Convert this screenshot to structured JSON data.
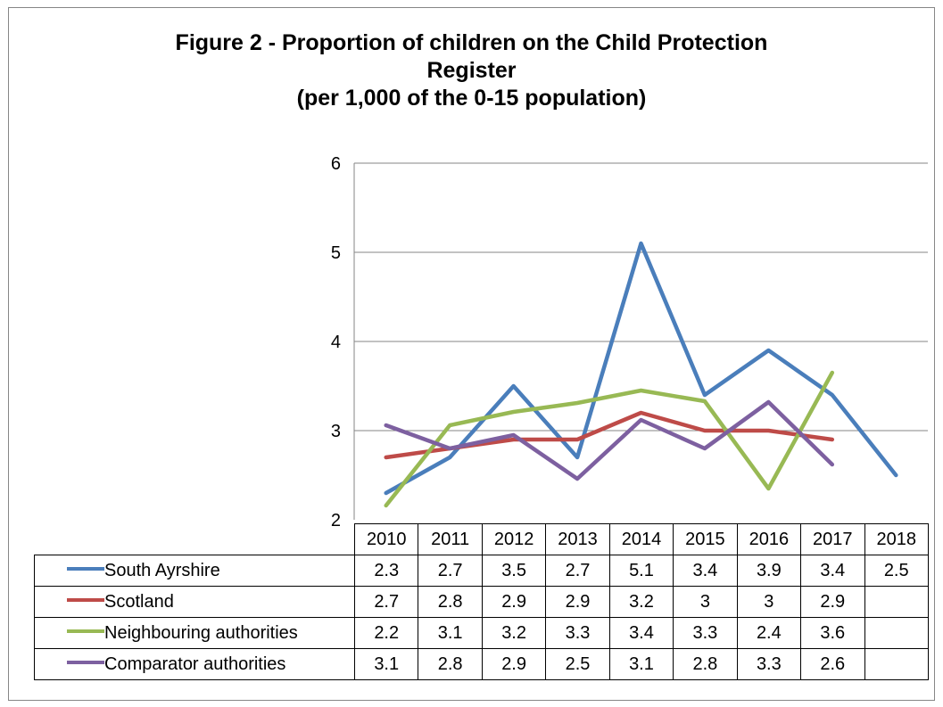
{
  "title_lines": [
    "Figure 2 - Proportion of children on the Child Protection",
    "Register",
    "(per 1,000 of the 0-15 population)"
  ],
  "chart_data": {
    "type": "line",
    "title": "Figure 2 - Proportion of children on the Child Protection Register (per 1,000 of the 0-15 population)",
    "categories": [
      "2010",
      "2011",
      "2012",
      "2013",
      "2014",
      "2015",
      "2016",
      "2017",
      "2018"
    ],
    "ylim": [
      2,
      6
    ],
    "yticks": [
      "2",
      "3",
      "4",
      "5",
      "6"
    ],
    "grid": true,
    "legend": "data-table",
    "series": [
      {
        "name": "South Ayrshire",
        "color": "#4a7ebb",
        "values": [
          2.3,
          2.7,
          3.5,
          2.7,
          5.1,
          3.4,
          3.9,
          3.4,
          2.5
        ],
        "labels": [
          "2.3",
          "2.7",
          "3.5",
          "2.7",
          "5.1",
          "3.4",
          "3.9",
          "3.4",
          "2.5"
        ]
      },
      {
        "name": "Scotland",
        "color": "#be4b48",
        "values": [
          2.7,
          2.8,
          2.9,
          2.9,
          3.2,
          3.0,
          3.0,
          2.9,
          null
        ],
        "labels": [
          "2.7",
          "2.8",
          "2.9",
          "2.9",
          "3.2",
          "3",
          "3",
          "2.9",
          ""
        ]
      },
      {
        "name": "Neighbouring authorities",
        "color": "#98b954",
        "values": [
          2.16,
          3.06,
          3.21,
          3.31,
          3.45,
          3.33,
          2.35,
          3.65,
          null
        ],
        "labels": [
          "2.2",
          "3.1",
          "3.2",
          "3.3",
          "3.4",
          "3.3",
          "2.4",
          "3.6",
          ""
        ]
      },
      {
        "name": "Comparator authorities",
        "color": "#7d60a0",
        "values": [
          3.06,
          2.8,
          2.95,
          2.46,
          3.12,
          2.8,
          3.32,
          2.62,
          null
        ],
        "labels": [
          "3.1",
          "2.8",
          "2.9",
          "2.5",
          "3.1",
          "2.8",
          "3.3",
          "2.6",
          ""
        ]
      }
    ]
  }
}
